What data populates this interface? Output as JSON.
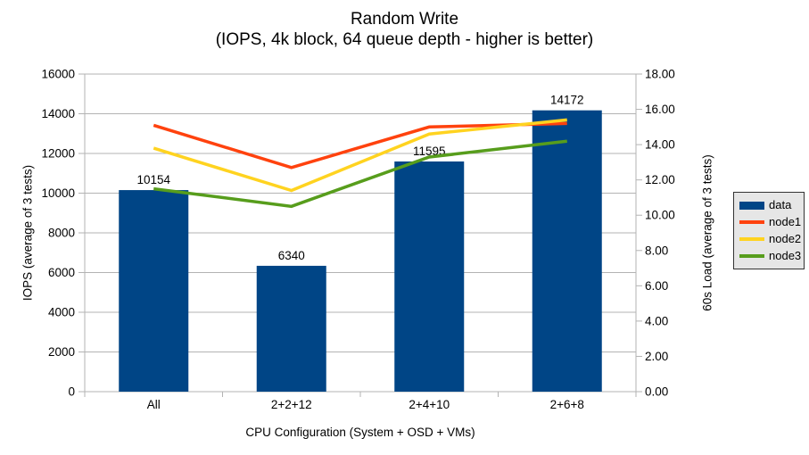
{
  "title": "Random Write",
  "subtitle": "(IOPS, 4k block, 64 queue depth - higher is better)",
  "chart_data": {
    "type": "bar",
    "combo": "bar+line",
    "title": "Random Write",
    "subtitle": "(IOPS, 4k block, 64 queue depth - higher is better)",
    "categories": [
      "All",
      "2+2+12",
      "2+4+10",
      "2+6+8"
    ],
    "bar_series": {
      "name": "data",
      "color": "#004586",
      "axis": "left",
      "values": [
        10154,
        6340,
        11595,
        14172
      ],
      "data_labels": [
        "10154",
        "6340",
        "11595",
        "14172"
      ]
    },
    "line_series": [
      {
        "name": "node1",
        "color": "#ff420e",
        "axis": "right",
        "values": [
          15.1,
          12.7,
          15.0,
          15.2
        ]
      },
      {
        "name": "node2",
        "color": "#ffd320",
        "axis": "right",
        "values": [
          13.8,
          11.4,
          14.6,
          15.4
        ]
      },
      {
        "name": "node3",
        "color": "#579d1c",
        "axis": "right",
        "values": [
          11.5,
          10.5,
          13.3,
          14.2
        ]
      }
    ],
    "x_axis": {
      "title": "CPU Configuration (System + OSD + VMs)",
      "tick_labels": [
        "All",
        "2+2+12",
        "2+4+10",
        "2+6+8"
      ]
    },
    "left_axis": {
      "title": "IOPS (average of 3 tests)",
      "min": 0,
      "max": 16000,
      "step": 2000,
      "tick_labels": [
        "0",
        "2000",
        "4000",
        "6000",
        "8000",
        "10000",
        "12000",
        "14000",
        "16000"
      ]
    },
    "right_axis": {
      "title": "60s Load (average of 3 tests)",
      "min": 0,
      "max": 18,
      "step": 2,
      "tick_labels": [
        "0.00",
        "2.00",
        "4.00",
        "6.00",
        "8.00",
        "10.00",
        "12.00",
        "14.00",
        "16.00",
        "18.00"
      ]
    },
    "grid": "horizontal-major",
    "legend": {
      "position": "right",
      "background": "#e6e6e6",
      "border_color": "#333333",
      "entries": [
        {
          "label": "data",
          "color": "#004586",
          "marker": "box"
        },
        {
          "label": "node1",
          "color": "#ff420e",
          "marker": "line"
        },
        {
          "label": "node2",
          "color": "#ffd320",
          "marker": "line"
        },
        {
          "label": "node3",
          "color": "#579d1c",
          "marker": "line"
        }
      ]
    },
    "colors": {
      "gridline": "#b3b3b3",
      "axis_line": "#b3b3b3",
      "text": "#000000",
      "background": "#ffffff"
    }
  }
}
